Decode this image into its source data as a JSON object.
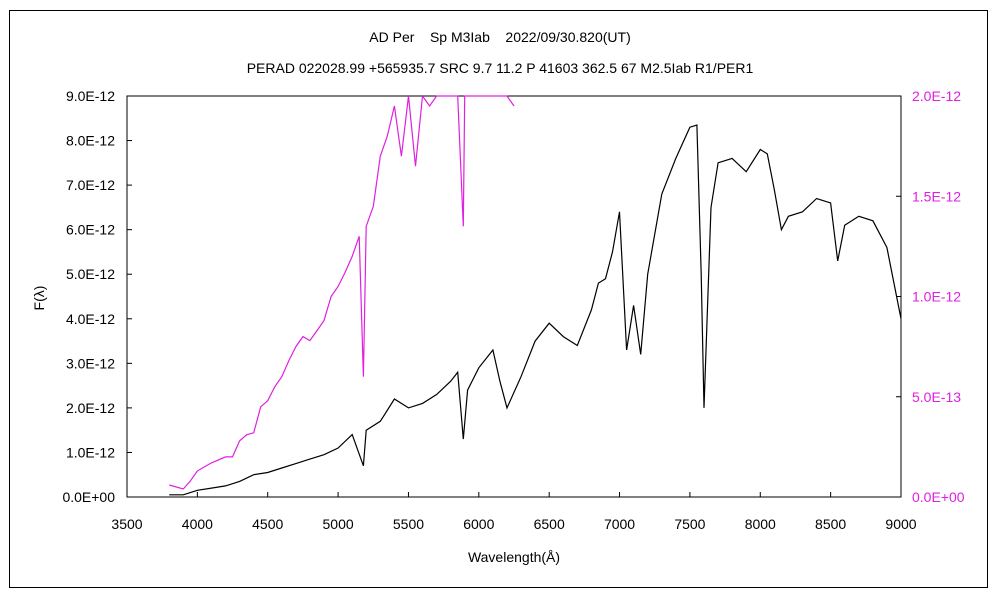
{
  "chart_data": {
    "type": "line",
    "title": "AD Per    Sp M3Iab    2022/09/30.820(UT)",
    "subtitle": "PERAD 022028.99 +565935.7 SRC 9.7 11.2 P 41603 362.5 67 M2.5Iab R1/PER1",
    "xlabel": "Wavelength(Å)",
    "ylabel": "F(λ)",
    "xlim": [
      3500,
      9000
    ],
    "ylim_left": [
      0,
      9e-12
    ],
    "ylim_right": [
      0,
      2e-12
    ],
    "x_ticks": [
      "3500",
      "4000",
      "4500",
      "5000",
      "5500",
      "6000",
      "6500",
      "7000",
      "7500",
      "8000",
      "8500",
      "9000"
    ],
    "y_ticks_left": [
      "0.0E+00",
      "1.0E-12",
      "2.0E-12",
      "3.0E-12",
      "4.0E-12",
      "5.0E-12",
      "6.0E-12",
      "7.0E-12",
      "8.0E-12",
      "9.0E-12"
    ],
    "y_ticks_right": [
      "0.0E+00",
      "5.0E-13",
      "1.0E-12",
      "1.5E-12",
      "2.0E-12"
    ],
    "grid": false,
    "colors": {
      "left_series": "#000000",
      "right_series": "#e020e0",
      "axes": "#000000"
    },
    "series": [
      {
        "axis": "left",
        "x": [
          3800,
          3900,
          4000,
          4100,
          4200,
          4300,
          4400,
          4500,
          4600,
          4700,
          4800,
          4900,
          5000,
          5100,
          5180,
          5200,
          5300,
          5400,
          5500,
          5600,
          5700,
          5800,
          5850,
          5890,
          5920,
          6000,
          6100,
          6150,
          6200,
          6300,
          6400,
          6500,
          6600,
          6700,
          6800,
          6850,
          6900,
          6950,
          7000,
          7050,
          7100,
          7150,
          7200,
          7300,
          7400,
          7500,
          7550,
          7580,
          7600,
          7620,
          7650,
          7700,
          7800,
          7900,
          8000,
          8050,
          8100,
          8150,
          8200,
          8300,
          8400,
          8500,
          8550,
          8600,
          8700,
          8800,
          8900,
          9000
        ],
        "y": [
          5e-14,
          5e-14,
          1.5e-13,
          2e-13,
          2.5e-13,
          3.5e-13,
          5e-13,
          5.5e-13,
          6.5e-13,
          7.5e-13,
          8.5e-13,
          9.5e-13,
          1.1e-12,
          1.4e-12,
          7e-13,
          1.5e-12,
          1.7e-12,
          2.2e-12,
          2e-12,
          2.1e-12,
          2.3e-12,
          2.6e-12,
          2.8e-12,
          1.3e-12,
          2.4e-12,
          2.9e-12,
          3.3e-12,
          2.6e-12,
          2e-12,
          2.7e-12,
          3.5e-12,
          3.9e-12,
          3.6e-12,
          3.4e-12,
          4.2e-12,
          4.8e-12,
          4.9e-12,
          5.5e-12,
          6.4e-12,
          3.3e-12,
          4.3e-12,
          3.2e-12,
          5e-12,
          6.8e-12,
          7.6e-12,
          8.3e-12,
          8.35e-12,
          5e-12,
          2e-12,
          3.8e-12,
          6.5e-12,
          7.5e-12,
          7.6e-12,
          7.3e-12,
          7.8e-12,
          7.7e-12,
          6.9e-12,
          6e-12,
          6.3e-12,
          6.4e-12,
          6.7e-12,
          6.6e-12,
          5.3e-12,
          6.1e-12,
          6.3e-12,
          6.2e-12,
          5.6e-12,
          4e-12
        ]
      },
      {
        "axis": "right",
        "x": [
          3800,
          3850,
          3900,
          3950,
          4000,
          4100,
          4200,
          4250,
          4300,
          4350,
          4400,
          4450,
          4500,
          4550,
          4600,
          4650,
          4700,
          4750,
          4800,
          4850,
          4900,
          4950,
          5000,
          5050,
          5100,
          5150,
          5180,
          5200,
          5250,
          5300,
          5350,
          5400,
          5450,
          5500,
          5550,
          5600,
          5650,
          5700,
          5750,
          5800,
          5850,
          5890,
          5900,
          5920,
          5950,
          6000,
          6100,
          6200,
          6250
        ],
        "y": [
          6e-14,
          5e-14,
          4e-14,
          8e-14,
          1.3e-13,
          1.7e-13,
          2e-13,
          2e-13,
          2.8e-13,
          3.1e-13,
          3.2e-13,
          4.5e-13,
          4.8e-13,
          5.5e-13,
          6e-13,
          6.8e-13,
          7.5e-13,
          8e-13,
          7.8e-13,
          8.3e-13,
          8.8e-13,
          1e-12,
          1.05e-12,
          1.12e-12,
          1.2e-12,
          1.3e-12,
          6e-13,
          1.35e-12,
          1.45e-12,
          1.7e-12,
          1.8e-12,
          1.95e-12,
          1.7e-12,
          2e-12,
          1.65e-12,
          2e-12,
          1.95e-12,
          2e-12,
          2e-12,
          2e-12,
          2e-12,
          1.35e-12,
          2e-12,
          2e-12,
          2e-12,
          2e-12,
          2e-12,
          2e-12,
          1.95e-12
        ]
      }
    ]
  }
}
